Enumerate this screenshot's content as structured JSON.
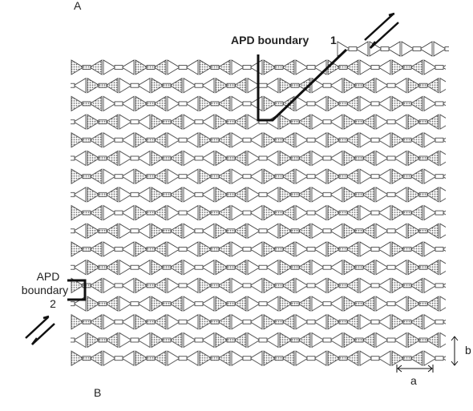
{
  "labels": {
    "top": "A",
    "bottom": "B",
    "boundary1": "APD boundary",
    "boundary1_number": "1",
    "boundary2": [
      "APD",
      "boundary",
      "2"
    ],
    "a": "a",
    "b": "b"
  }
}
